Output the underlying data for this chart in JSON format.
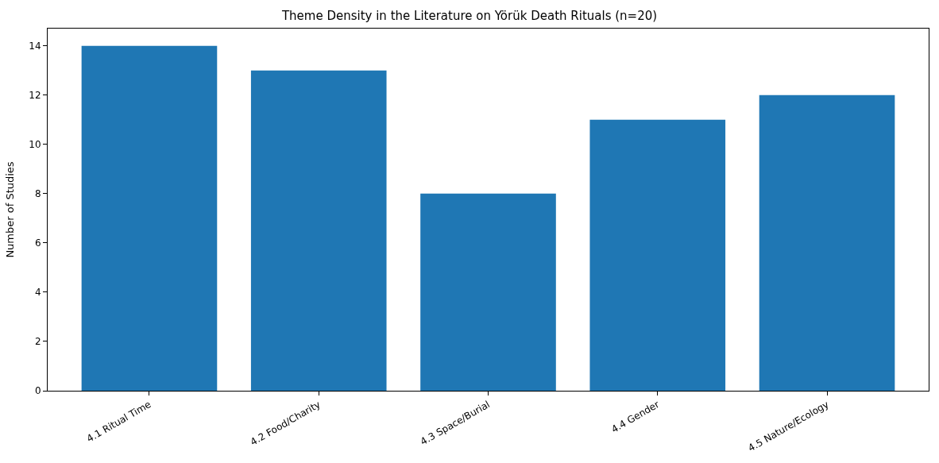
{
  "chart_data": {
    "type": "bar",
    "title": "Theme Density in the Literature on Yörük Death Rituals (n=20)",
    "ylabel": "Number of Studies",
    "categories": [
      "4.1 Ritual Time",
      "4.2 Food/Charity",
      "4.3 Space/Burial",
      "4.4 Gender",
      "4.5 Nature/Ecology"
    ],
    "values": [
      14,
      13,
      8,
      11,
      12
    ],
    "color": "#1f77b4",
    "ylim": [
      0,
      14.7
    ],
    "yticks": [
      0,
      2,
      4,
      6,
      8,
      10,
      12,
      14
    ]
  }
}
